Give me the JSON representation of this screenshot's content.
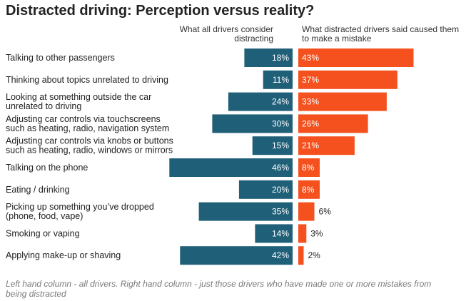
{
  "title": "Distracted driving: Perception versus reality?",
  "left_header": "What all drivers consider distracting",
  "right_header": "What distracted drivers said caused them to make a mistake",
  "footnote": "Left hand column - all drivers. Right hand column - just those drivers who have made one or more mistakes from being distracted",
  "colors": {
    "left": "#1f5f78",
    "right": "#f4511e"
  },
  "chart_data": {
    "type": "bar",
    "title": "Distracted driving: Perception versus reality?",
    "categories": [
      [
        "Talking to other passengers"
      ],
      [
        "Thinking about topics unrelated to driving"
      ],
      [
        "Looking at something outside the car",
        "unrelated to driving"
      ],
      [
        "Adjusting car controls via touchscreens",
        "such as heating, radio, navigation system"
      ],
      [
        "Adjusting car controls via knobs or buttons",
        "such as heating, radio, windows or mirrors"
      ],
      [
        "Talking on the phone"
      ],
      [
        "Eating / drinking"
      ],
      [
        "Picking up something you’ve dropped",
        "(phone, food, vape)"
      ],
      [
        "Smoking or vaping"
      ],
      [
        "Applying make-up or shaving"
      ]
    ],
    "series": [
      {
        "name": "What all drivers consider distracting",
        "values": [
          18,
          11,
          24,
          30,
          15,
          46,
          20,
          35,
          14,
          42
        ]
      },
      {
        "name": "What distracted drivers said caused them to make a mistake",
        "values": [
          43,
          37,
          33,
          26,
          21,
          8,
          8,
          6,
          3,
          2
        ]
      }
    ],
    "unit": "%",
    "xlim": [
      0,
      46
    ]
  }
}
